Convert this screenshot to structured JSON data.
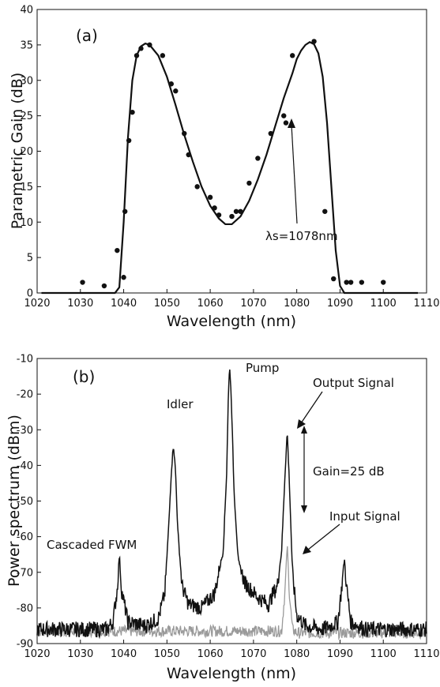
{
  "chart_data": [
    {
      "type": "scatter",
      "panel_label": "(a)",
      "xlabel": "Wavelength (nm)",
      "ylabel": "Parametric Gain (dB)",
      "xlim": [
        1020,
        1110
      ],
      "ylim": [
        0,
        40
      ],
      "xticks": [
        1020,
        1030,
        1040,
        1050,
        1060,
        1070,
        1080,
        1090,
        1100,
        1110
      ],
      "yticks": [
        0,
        5,
        10,
        15,
        20,
        25,
        30,
        35,
        40
      ],
      "grid": false,
      "series": [
        {
          "style": "points",
          "color": "#111111",
          "x": [
            1030.5,
            1035.5,
            1038.5,
            1040,
            1040.3,
            1041.2,
            1042,
            1043,
            1044,
            1046,
            1049,
            1051,
            1052,
            1054,
            1055,
            1057,
            1060,
            1061,
            1062,
            1065,
            1066,
            1067,
            1069,
            1071,
            1074,
            1077,
            1077.5,
            1079,
            1084,
            1086.5,
            1088.5,
            1091.5,
            1092.5,
            1095,
            1100
          ],
          "y": [
            1.5,
            1,
            6,
            2.2,
            11.5,
            21.5,
            25.5,
            33.5,
            34.5,
            35,
            33.5,
            29.5,
            28.5,
            22.5,
            19.5,
            15,
            13.5,
            12,
            11,
            10.8,
            11.5,
            11.5,
            15.5,
            19,
            22.5,
            25,
            24,
            33.5,
            35.5,
            11.5,
            2,
            1.5,
            1.5,
            1.5,
            1.5
          ]
        },
        {
          "style": "line",
          "color": "#111111",
          "x": [
            1021,
            1030,
            1038,
            1039,
            1040,
            1041,
            1042,
            1043,
            1044,
            1045,
            1046,
            1048,
            1050,
            1052,
            1054,
            1056,
            1058,
            1060,
            1062,
            1063.5,
            1065,
            1067,
            1069,
            1071,
            1073,
            1075,
            1077,
            1079,
            1080,
            1081,
            1082,
            1083,
            1084,
            1085,
            1086,
            1087,
            1088,
            1089,
            1090,
            1091,
            1100,
            1108
          ],
          "y": [
            0,
            0,
            0,
            0.8,
            10,
            22,
            30,
            33.5,
            34.8,
            35.2,
            35,
            33.5,
            30.5,
            26.5,
            22.3,
            18.5,
            15,
            12.3,
            10.5,
            9.7,
            9.7,
            10.8,
            13,
            16,
            19.5,
            23.5,
            27.5,
            31,
            33,
            34.2,
            35,
            35.4,
            35.1,
            33.8,
            30.5,
            24,
            15,
            6,
            1,
            0,
            0,
            0
          ]
        }
      ],
      "annotations": [
        {
          "text": "λs=1078nm",
          "arrow_to": [
            1078,
            25
          ]
        }
      ]
    },
    {
      "type": "line",
      "panel_label": "(b)",
      "xlabel": "Wavelength (nm)",
      "ylabel": "Power spectrum (dBm)",
      "xlim": [
        1020,
        1110
      ],
      "ylim": [
        -90,
        -10
      ],
      "xticks": [
        1020,
        1030,
        1040,
        1050,
        1060,
        1070,
        1080,
        1090,
        1100,
        1110
      ],
      "yticks": [
        -90,
        -80,
        -70,
        -60,
        -50,
        -40,
        -30,
        -20,
        -10
      ],
      "grid": false,
      "series": [
        {
          "style": "line",
          "color": "#111111",
          "noise": 2.2,
          "x": [
            1020,
            1036,
            1037.5,
            1038.5,
            1039,
            1039.5,
            1041,
            1045,
            1048,
            1049.5,
            1050.5,
            1051,
            1051.5,
            1052,
            1052.5,
            1053.5,
            1055,
            1058,
            1061,
            1063,
            1063.8,
            1064.2,
            1064.5,
            1064.9,
            1065.5,
            1066.5,
            1068,
            1071,
            1073.5,
            1074.5,
            1075.5,
            1076.5,
            1077.3,
            1077.8,
            1078.3,
            1079,
            1080,
            1082,
            1086,
            1089.5,
            1090.5,
            1091,
            1091.5,
            1092.5,
            1096,
            1104,
            1110
          ],
          "y": [
            -86,
            -86,
            -84,
            -75,
            -65,
            -75,
            -84,
            -85,
            -83,
            -76,
            -55,
            -42,
            -34,
            -42,
            -58,
            -74,
            -79,
            -80,
            -76,
            -64,
            -42,
            -20,
            -12,
            -22,
            -47,
            -67,
            -73,
            -77,
            -79,
            -76,
            -74,
            -64,
            -42,
            -30.5,
            -45,
            -70,
            -82,
            -85,
            -86,
            -84,
            -73,
            -66,
            -74,
            -84,
            -86,
            -86,
            -86
          ]
        },
        {
          "style": "line",
          "color": "#9a9a9a",
          "noise": 1.6,
          "x": [
            1020,
            1076.5,
            1077.3,
            1077.8,
            1078.3,
            1079,
            1080,
            1110
          ],
          "y": [
            -86.5,
            -86.5,
            -75,
            -62,
            -76,
            -86,
            -87,
            -87
          ]
        }
      ],
      "annotations": [
        {
          "text": "Pump",
          "arrow_to": null
        },
        {
          "text": "Idler",
          "arrow_to": null
        },
        {
          "text": "Output Signal",
          "arrow_to": [
            1077.8,
            -31
          ]
        },
        {
          "text": "Gain=25 dB",
          "arrow_to": null
        },
        {
          "text": "Input Signal",
          "arrow_to": [
            1078,
            -69
          ]
        },
        {
          "text": "Cascaded FWM",
          "arrow_to": null
        }
      ]
    }
  ]
}
